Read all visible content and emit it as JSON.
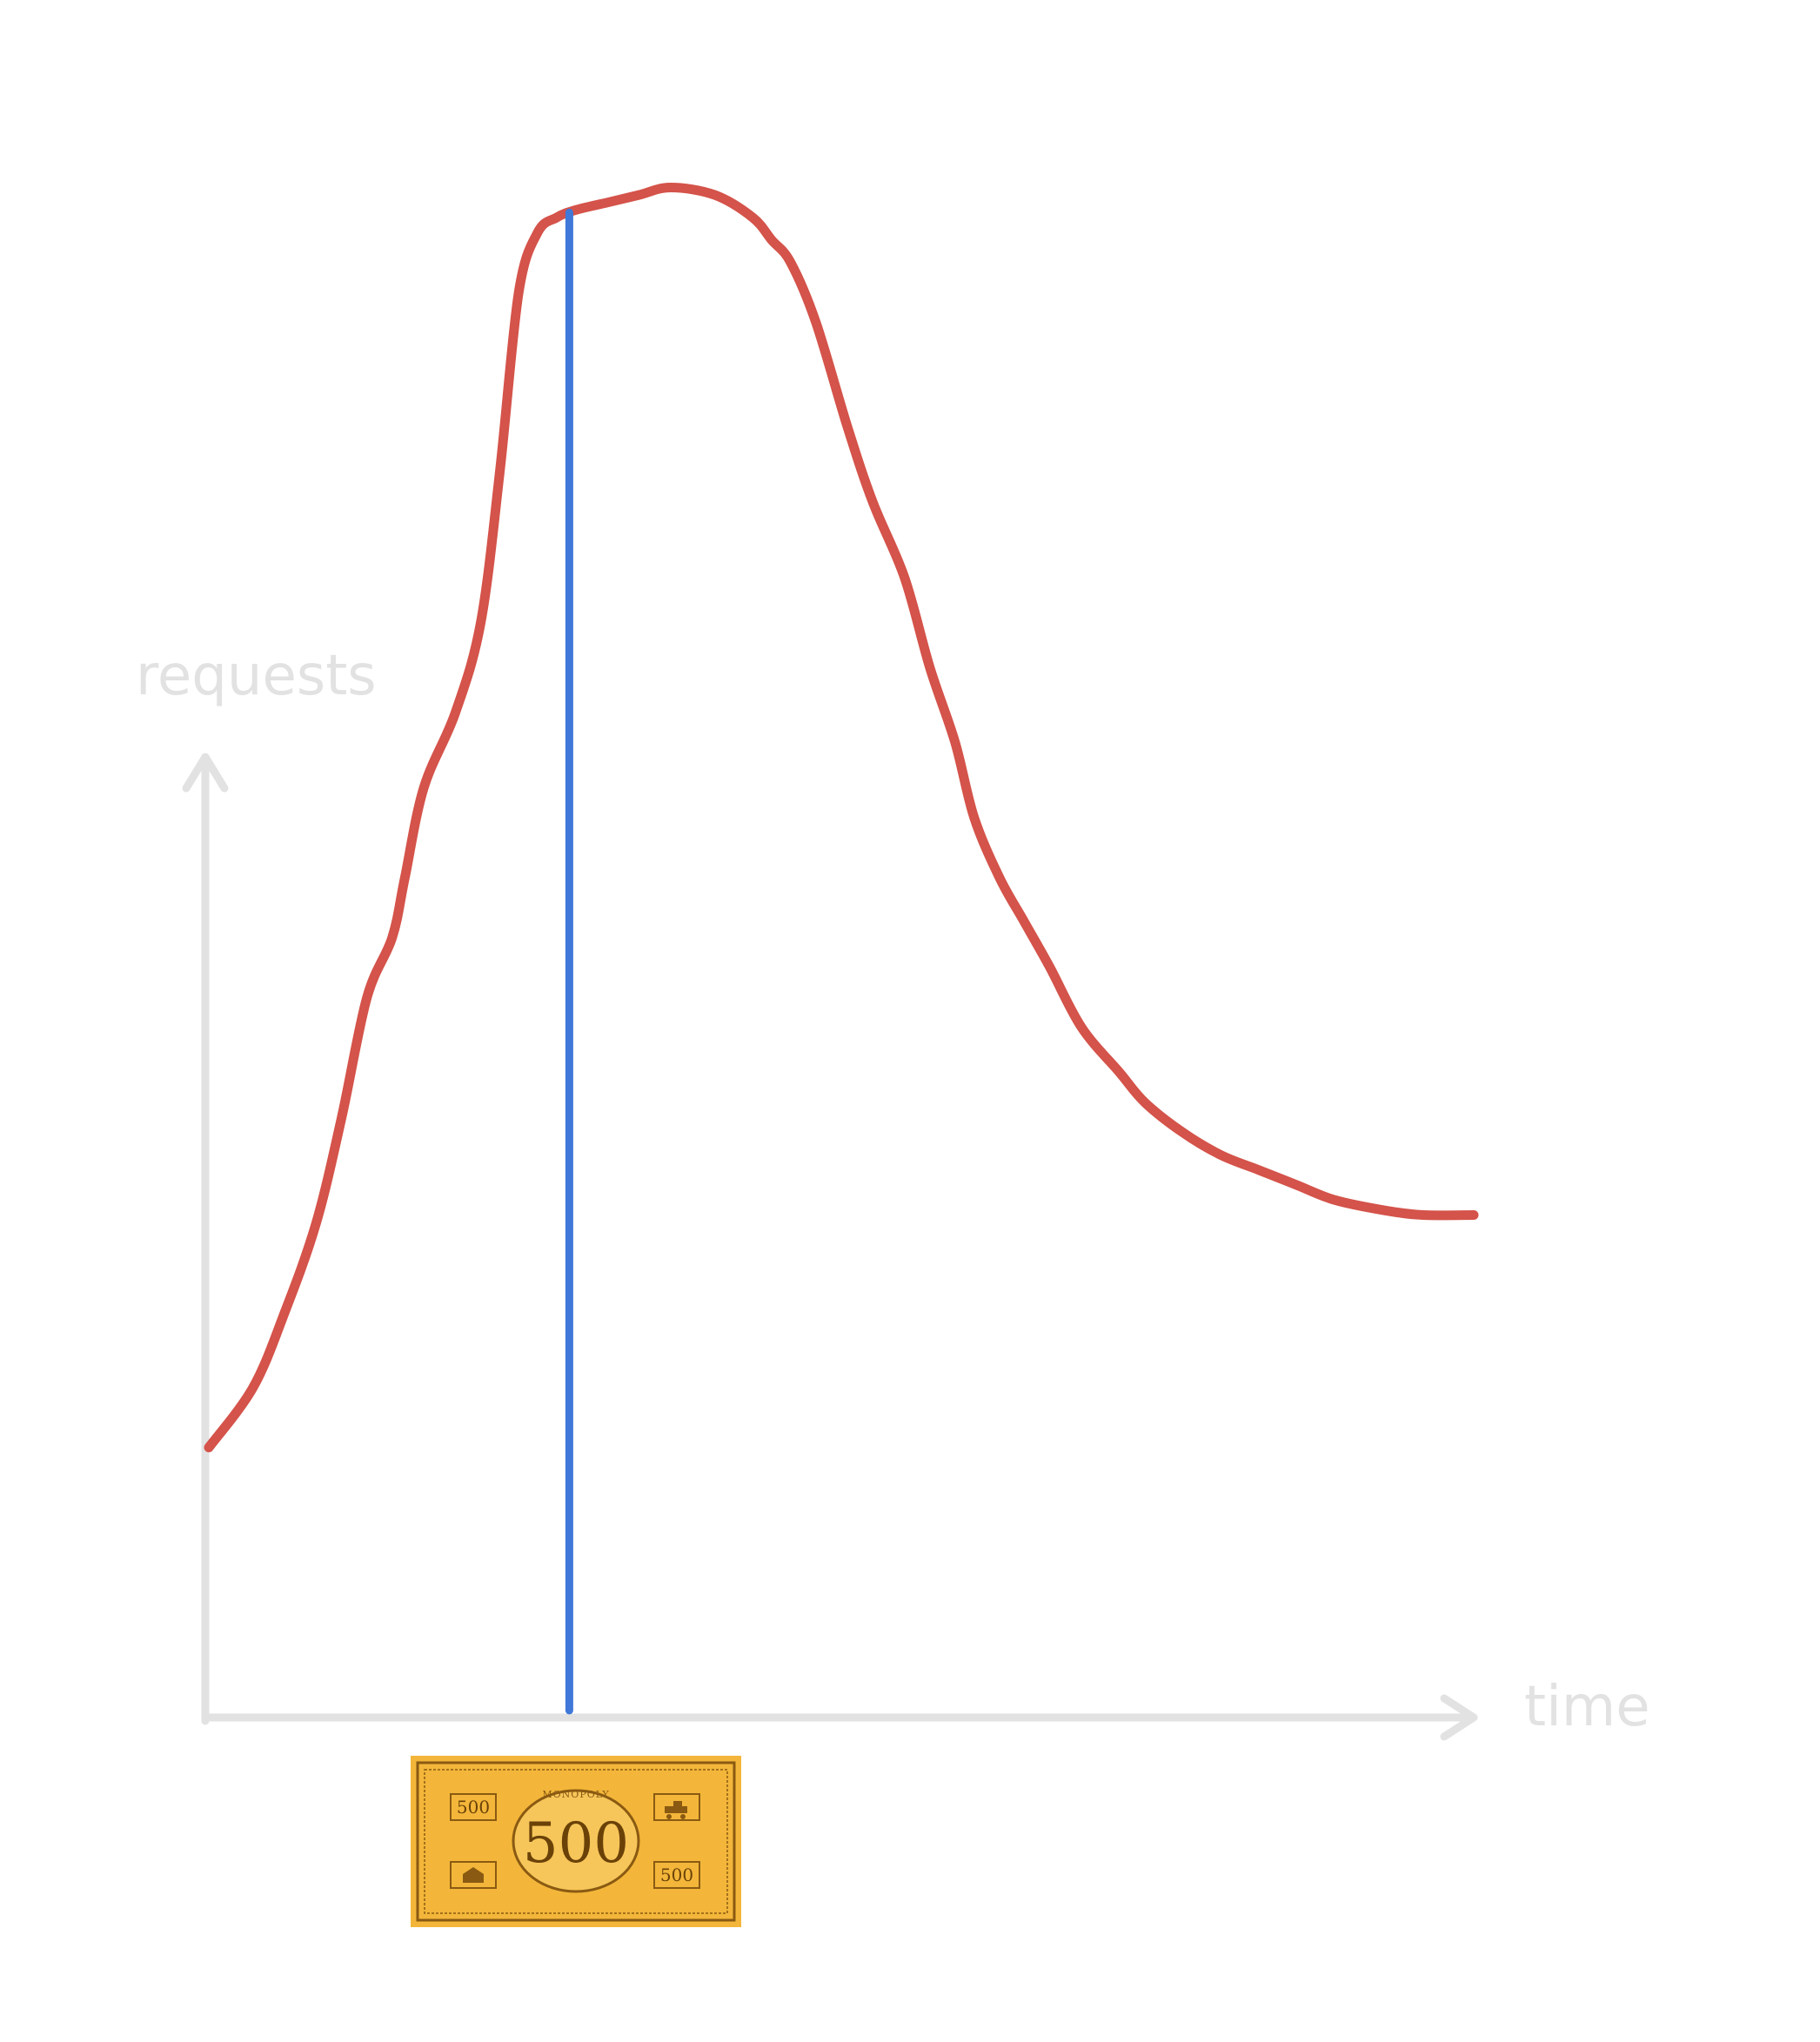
{
  "chart_data": {
    "type": "line",
    "title": "",
    "xlabel": "time",
    "ylabel": "requests",
    "xlim": [
      0,
      100
    ],
    "ylim": [
      0,
      100
    ],
    "grid": false,
    "ticks": false,
    "series": [
      {
        "color": "#d4534a",
        "x": [
          0,
          3.5,
          6,
          8.5,
          10.5,
          12.5,
          14.5,
          15.5,
          17,
          19.5,
          21.5,
          23,
          24.5,
          26,
          27.5,
          29,
          31.5,
          34,
          36.5,
          40,
          43,
          44.5,
          46,
          48,
          50.5,
          52.5,
          55,
          57,
          59,
          60.5,
          62.5,
          64.5,
          66.5,
          69,
          72,
          74,
          77,
          80,
          83,
          86,
          89,
          93,
          96,
          100
        ],
        "y": [
          18,
          22,
          27,
          33,
          40,
          48,
          52,
          56,
          62,
          67,
          73,
          83,
          95,
          99,
          100,
          100.5,
          101,
          101.5,
          102,
          101.5,
          100,
          98.5,
          97,
          93,
          86,
          81,
          76,
          70,
          65,
          60,
          56,
          53,
          50,
          46,
          43,
          41,
          39,
          37.5,
          36.5,
          35.5,
          34.5,
          33.8,
          33.5,
          33.5
        ]
      }
    ],
    "vline": {
      "x": 28.5,
      "color": "#3f78d8"
    },
    "colors": {
      "axis": "#e2e2e2",
      "curve": "#d4534a",
      "marker": "#3f78d8"
    },
    "bill": {
      "brand": "MONOPOLY",
      "value": "500",
      "corner_values": [
        "500",
        "500"
      ],
      "colors": {
        "paper": "#f3b63a",
        "ink": "#8a5a12"
      }
    }
  }
}
